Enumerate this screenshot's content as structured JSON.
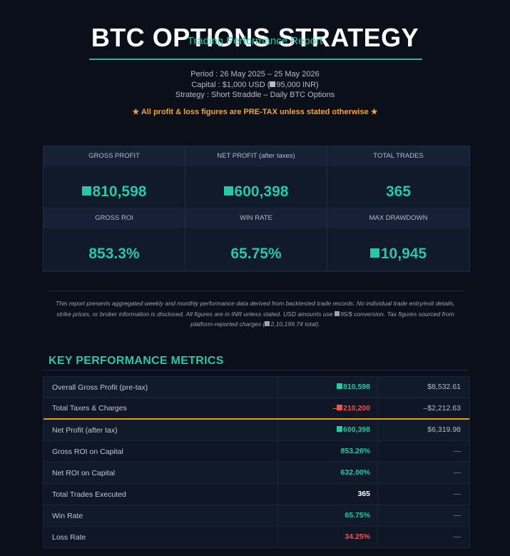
{
  "header": {
    "title": "BTC OPTIONS STRATEGY",
    "subtitle": "Trading Performance Report",
    "period": "Period : 26 May 2025 – 25 May 2026",
    "capital_prefix": "Capital : $1,000 USD (",
    "capital_value": "95,000 INR)",
    "strategy": "Strategy : Short Straddle – Daily BTC Options",
    "pretax_note": "★ All profit & loss figures are PRE-TAX unless stated otherwise ★"
  },
  "summary": [
    {
      "label": "GROSS PROFIT",
      "value": "810,598",
      "currency_icon": true
    },
    {
      "label": "NET PROFIT (after taxes)",
      "value": "600,398",
      "currency_icon": true
    },
    {
      "label": "TOTAL TRADES",
      "value": "365",
      "currency_icon": false
    },
    {
      "label": "GROSS ROI",
      "value": "853.3%",
      "currency_icon": false
    },
    {
      "label": "WIN RATE",
      "value": "65.75%",
      "currency_icon": false
    },
    {
      "label": "MAX DRAWDOWN",
      "value": "10,945",
      "currency_icon": true
    }
  ],
  "disclaimer": {
    "part1": "This report presents aggregated weekly and monthly performance data derived from backtested trade records. No individual trade entry/exit details, strike prices, or broker information is disclosed. All figures are in INR unless stated. USD amounts use ",
    "part2": "95/$ conversion. Tax figures sourced from platform-reported charges (",
    "part3": "2,10,199.74 total)."
  },
  "kpi": {
    "title": "KEY PERFORMANCE METRICS",
    "rows": [
      {
        "label": "Overall Gross Profit (pre-tax)",
        "inr": "810,598",
        "usd": "$8,532.61",
        "tone": "green",
        "icon": "g"
      },
      {
        "label": "Total Taxes & Charges",
        "inr": "210,200",
        "inr_prefix": "–",
        "usd": "–$2,212.63",
        "tone": "red",
        "icon": "r"
      },
      {
        "label": "Net Profit (after tax)",
        "inr": "600,398",
        "usd": "$6,319.98",
        "tone": "green",
        "icon": "g"
      },
      {
        "label": "Gross ROI on Capital",
        "inr": "853.26%",
        "usd": "—",
        "tone": "green",
        "icon": ""
      },
      {
        "label": "Net ROI on Capital",
        "inr": "632.00%",
        "usd": "—",
        "tone": "green",
        "icon": ""
      },
      {
        "label": "Total Trades Executed",
        "inr": "365",
        "usd": "—",
        "tone": "white",
        "icon": ""
      },
      {
        "label": "Win Rate",
        "inr": "65.75%",
        "usd": "—",
        "tone": "green",
        "icon": ""
      },
      {
        "label": "Loss Rate",
        "inr": "34.25%",
        "usd": "—",
        "tone": "red",
        "icon": ""
      }
    ]
  },
  "colors": {
    "accent": "#23c9a8",
    "negative": "#f05252",
    "highlight": "#f2a33a",
    "background": "#0b0f1a"
  }
}
